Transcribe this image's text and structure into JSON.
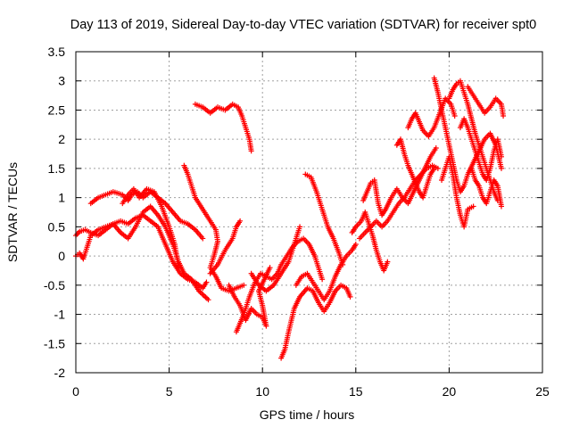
{
  "chart_data": {
    "type": "scatter",
    "title": "Day 113 of 2019, Sidereal Day-to-day VTEC variation (SDTVAR) for receiver spt0",
    "xlabel": "GPS time / hours",
    "ylabel": "SDTVAR / TECUs",
    "xlim": [
      0,
      25
    ],
    "ylim": [
      -2,
      3.5
    ],
    "xticks": [
      0,
      5,
      10,
      15,
      20,
      25
    ],
    "yticks": [
      -2,
      -1.5,
      -1,
      -0.5,
      0,
      0.5,
      1,
      1.5,
      2,
      2.5,
      3,
      3.5
    ],
    "grid": true,
    "marker": "+",
    "color": "#ff0000",
    "series": [
      {
        "points": [
          [
            0,
            0.35
          ],
          [
            0.2,
            0.42
          ],
          [
            0.5,
            0.45
          ],
          [
            0.8,
            0.4
          ],
          [
            1.2,
            0.35
          ],
          [
            1.6,
            0.45
          ],
          [
            2.0,
            0.55
          ],
          [
            2.4,
            0.6
          ],
          [
            2.8,
            0.55
          ],
          [
            3.2,
            0.65
          ],
          [
            3.6,
            0.7
          ],
          [
            4.0,
            0.6
          ],
          [
            4.4,
            0.5
          ],
          [
            4.8,
            0.2
          ],
          [
            5.2,
            -0.1
          ],
          [
            5.6,
            -0.3
          ],
          [
            6.0,
            -0.4
          ],
          [
            6.4,
            -0.45
          ],
          [
            6.8,
            -0.55
          ],
          [
            7.0,
            -0.45
          ]
        ]
      },
      {
        "points": [
          [
            0,
            0.0
          ],
          [
            0.2,
            0.05
          ],
          [
            0.4,
            -0.05
          ],
          [
            0.8,
            0.35
          ],
          [
            1.2,
            0.45
          ],
          [
            1.6,
            0.5
          ],
          [
            2.0,
            0.55
          ],
          [
            2.4,
            0.4
          ],
          [
            2.8,
            0.3
          ],
          [
            3.2,
            0.5
          ],
          [
            3.6,
            0.75
          ],
          [
            4.0,
            0.85
          ],
          [
            4.4,
            0.7
          ],
          [
            4.8,
            0.5
          ],
          [
            5.2,
            0.2
          ],
          [
            5.5,
            -0.1
          ],
          [
            5.8,
            -0.3
          ],
          [
            6.2,
            -0.4
          ],
          [
            6.6,
            -0.6
          ],
          [
            7.1,
            -0.75
          ]
        ]
      },
      {
        "points": [
          [
            0.8,
            0.9
          ],
          [
            1.2,
            1.0
          ],
          [
            1.6,
            1.05
          ],
          [
            2.0,
            1.1
          ],
          [
            2.5,
            1.05
          ],
          [
            2.8,
            0.95
          ],
          [
            3.0,
            1.05
          ],
          [
            3.3,
            1.1
          ],
          [
            3.6,
            1.0
          ],
          [
            4.0,
            1.1
          ],
          [
            4.4,
            1.0
          ],
          [
            4.8,
            0.9
          ],
          [
            5.2,
            0.75
          ],
          [
            5.6,
            0.6
          ],
          [
            6.0,
            0.55
          ],
          [
            6.4,
            0.45
          ],
          [
            6.8,
            0.3
          ]
        ]
      },
      {
        "points": [
          [
            2.5,
            0.9
          ],
          [
            2.8,
            1.05
          ],
          [
            3.1,
            1.15
          ],
          [
            3.4,
            1.0
          ],
          [
            3.8,
            1.15
          ],
          [
            4.2,
            1.1
          ],
          [
            4.6,
            0.85
          ],
          [
            5.0,
            0.5
          ],
          [
            5.3,
            0.2
          ],
          [
            5.5,
            -0.2
          ]
        ]
      },
      {
        "points": [
          [
            5.8,
            1.55
          ],
          [
            6.0,
            1.4
          ],
          [
            6.2,
            1.2
          ],
          [
            6.4,
            1.0
          ],
          [
            6.8,
            0.8
          ],
          [
            7.2,
            0.6
          ],
          [
            7.5,
            0.45
          ],
          [
            7.6,
            0.25
          ],
          [
            7.4,
            0.0
          ],
          [
            7.2,
            -0.2
          ],
          [
            7.5,
            -0.35
          ],
          [
            7.8,
            -0.55
          ],
          [
            8.2,
            -0.6
          ],
          [
            8.6,
            -0.55
          ],
          [
            9.0,
            -0.5
          ]
        ]
      },
      {
        "points": [
          [
            7.2,
            -0.3
          ],
          [
            7.6,
            -0.15
          ],
          [
            8.0,
            0.1
          ],
          [
            8.4,
            0.3
          ],
          [
            8.6,
            0.5
          ],
          [
            8.8,
            0.6
          ]
        ]
      },
      {
        "points": [
          [
            6.4,
            2.6
          ],
          [
            6.8,
            2.55
          ],
          [
            7.2,
            2.45
          ],
          [
            7.6,
            2.55
          ],
          [
            8.0,
            2.5
          ],
          [
            8.4,
            2.6
          ],
          [
            8.7,
            2.55
          ],
          [
            8.9,
            2.4
          ],
          [
            9.1,
            2.2
          ],
          [
            9.3,
            2.0
          ],
          [
            9.4,
            1.8
          ]
        ]
      },
      {
        "points": [
          [
            8.2,
            -0.5
          ],
          [
            8.5,
            -0.7
          ],
          [
            8.8,
            -0.85
          ],
          [
            9.1,
            -1.1
          ],
          [
            9.4,
            -0.9
          ],
          [
            9.7,
            -1.0
          ],
          [
            10.0,
            -1.05
          ],
          [
            10.2,
            -1.2
          ],
          [
            10.0,
            -0.85
          ],
          [
            9.8,
            -0.6
          ],
          [
            10.1,
            -0.4
          ],
          [
            10.4,
            -0.2
          ]
        ]
      },
      {
        "points": [
          [
            8.6,
            -1.3
          ],
          [
            9.0,
            -1.0
          ],
          [
            9.3,
            -0.7
          ],
          [
            9.6,
            -0.45
          ],
          [
            9.9,
            -0.3
          ],
          [
            10.2,
            -0.35
          ],
          [
            10.5,
            -0.4
          ],
          [
            10.8,
            -0.3
          ],
          [
            11.0,
            -0.15
          ],
          [
            11.3,
            0.0
          ],
          [
            11.6,
            0.15
          ],
          [
            11.9,
            0.25
          ],
          [
            12.2,
            0.3
          ],
          [
            12.5,
            0.2
          ],
          [
            12.8,
            0.0
          ],
          [
            13.0,
            -0.2
          ],
          [
            13.2,
            -0.4
          ]
        ]
      },
      {
        "points": [
          [
            9.4,
            -0.3
          ],
          [
            9.8,
            -0.5
          ],
          [
            10.2,
            -0.6
          ],
          [
            10.6,
            -0.5
          ],
          [
            11.0,
            -0.3
          ],
          [
            11.4,
            -0.1
          ],
          [
            11.7,
            0.2
          ],
          [
            12.0,
            0.5
          ]
        ]
      },
      {
        "points": [
          [
            11.0,
            -1.75
          ],
          [
            11.2,
            -1.6
          ],
          [
            11.4,
            -1.3
          ],
          [
            11.7,
            -0.9
          ],
          [
            12.0,
            -0.7
          ],
          [
            12.4,
            -0.55
          ],
          [
            12.7,
            -0.6
          ],
          [
            13.0,
            -0.8
          ],
          [
            13.3,
            -0.95
          ],
          [
            13.6,
            -0.8
          ],
          [
            13.9,
            -0.6
          ],
          [
            14.2,
            -0.5
          ],
          [
            14.5,
            -0.55
          ],
          [
            14.7,
            -0.7
          ]
        ]
      },
      {
        "points": [
          [
            11.8,
            -0.5
          ],
          [
            12.1,
            -0.35
          ],
          [
            12.4,
            -0.3
          ],
          [
            12.7,
            -0.45
          ],
          [
            13.0,
            -0.6
          ],
          [
            13.3,
            -0.75
          ],
          [
            13.6,
            -0.6
          ],
          [
            13.9,
            -0.35
          ],
          [
            14.2,
            -0.15
          ],
          [
            14.5,
            0.0
          ],
          [
            14.8,
            0.1
          ],
          [
            15.0,
            0.2
          ]
        ]
      },
      {
        "points": [
          [
            12.3,
            1.4
          ],
          [
            12.6,
            1.35
          ],
          [
            12.9,
            1.1
          ],
          [
            13.2,
            0.8
          ],
          [
            13.5,
            0.5
          ],
          [
            13.8,
            0.3
          ],
          [
            14.1,
            0.05
          ],
          [
            14.3,
            -0.15
          ]
        ]
      },
      {
        "points": [
          [
            14.8,
            0.4
          ],
          [
            15.0,
            0.5
          ],
          [
            15.3,
            0.6
          ],
          [
            15.5,
            0.75
          ],
          [
            15.7,
            0.55
          ],
          [
            15.9,
            0.35
          ],
          [
            16.1,
            0.1
          ],
          [
            16.3,
            -0.1
          ],
          [
            16.5,
            -0.25
          ],
          [
            16.7,
            -0.1
          ]
        ]
      },
      {
        "points": [
          [
            15.2,
            0.3
          ],
          [
            15.5,
            0.4
          ],
          [
            15.8,
            0.5
          ],
          [
            16.1,
            0.6
          ],
          [
            16.4,
            0.5
          ],
          [
            16.7,
            0.6
          ],
          [
            17.0,
            0.75
          ],
          [
            17.3,
            0.9
          ],
          [
            17.6,
            1.0
          ],
          [
            17.9,
            1.15
          ],
          [
            18.2,
            1.3
          ],
          [
            18.5,
            1.4
          ],
          [
            18.8,
            1.5
          ],
          [
            19.1,
            1.55
          ],
          [
            19.4,
            1.5
          ]
        ]
      },
      {
        "points": [
          [
            15.4,
            0.95
          ],
          [
            15.6,
            1.1
          ],
          [
            15.8,
            1.25
          ],
          [
            16.0,
            1.3
          ],
          [
            16.2,
            0.9
          ],
          [
            16.4,
            0.7
          ],
          [
            16.6,
            0.8
          ],
          [
            16.9,
            1.0
          ],
          [
            17.2,
            1.15
          ],
          [
            17.5,
            1.0
          ],
          [
            17.8,
            0.9
          ],
          [
            18.1,
            1.1
          ],
          [
            18.4,
            1.3
          ],
          [
            18.7,
            1.5
          ],
          [
            19.0,
            1.7
          ],
          [
            19.3,
            1.85
          ]
        ]
      },
      {
        "points": [
          [
            17.2,
            1.9
          ],
          [
            17.4,
            2.0
          ],
          [
            17.6,
            1.75
          ],
          [
            17.8,
            1.55
          ],
          [
            18.0,
            1.4
          ],
          [
            18.2,
            1.25
          ],
          [
            18.4,
            1.1
          ],
          [
            18.6,
            1.0
          ],
          [
            18.8,
            1.2
          ],
          [
            19.0,
            1.4
          ],
          [
            19.2,
            1.5
          ]
        ]
      },
      {
        "points": [
          [
            17.8,
            2.2
          ],
          [
            18.0,
            2.35
          ],
          [
            18.2,
            2.45
          ],
          [
            18.4,
            2.3
          ],
          [
            18.6,
            2.15
          ],
          [
            18.9,
            2.05
          ],
          [
            19.2,
            2.2
          ],
          [
            19.5,
            2.45
          ],
          [
            19.8,
            2.7
          ],
          [
            20.1,
            2.6
          ],
          [
            20.3,
            2.4
          ]
        ]
      },
      {
        "points": [
          [
            19.2,
            3.05
          ],
          [
            19.4,
            2.8
          ],
          [
            19.6,
            2.5
          ],
          [
            19.8,
            2.2
          ],
          [
            20.0,
            1.9
          ],
          [
            20.2,
            1.6
          ],
          [
            20.4,
            1.3
          ],
          [
            20.6,
            1.1
          ],
          [
            20.8,
            1.2
          ],
          [
            21.0,
            1.4
          ],
          [
            21.3,
            1.6
          ],
          [
            21.6,
            1.8
          ],
          [
            21.9,
            2.0
          ],
          [
            22.2,
            2.1
          ],
          [
            22.5,
            1.9
          ],
          [
            22.8,
            1.5
          ]
        ]
      },
      {
        "points": [
          [
            19.6,
            1.3
          ],
          [
            19.8,
            1.5
          ],
          [
            20.0,
            1.7
          ],
          [
            20.2,
            1.4
          ],
          [
            20.4,
            1.0
          ],
          [
            20.6,
            0.7
          ],
          [
            20.8,
            0.5
          ],
          [
            21.0,
            0.8
          ],
          [
            21.3,
            0.85
          ]
        ]
      },
      {
        "points": [
          [
            20.0,
            2.7
          ],
          [
            20.2,
            2.85
          ],
          [
            20.4,
            2.95
          ],
          [
            20.6,
            3.0
          ],
          [
            20.8,
            2.8
          ],
          [
            21.0,
            2.6
          ],
          [
            21.2,
            2.35
          ],
          [
            21.4,
            2.1
          ],
          [
            21.6,
            1.9
          ],
          [
            21.8,
            1.7
          ],
          [
            22.0,
            1.5
          ],
          [
            22.2,
            1.3
          ],
          [
            22.4,
            1.1
          ],
          [
            22.6,
            0.95
          ]
        ]
      },
      {
        "points": [
          [
            20.6,
            2.2
          ],
          [
            20.8,
            2.35
          ],
          [
            21.0,
            2.2
          ],
          [
            21.2,
            2.0
          ],
          [
            21.4,
            1.8
          ],
          [
            21.6,
            1.6
          ],
          [
            21.8,
            1.4
          ],
          [
            22.0,
            1.3
          ],
          [
            22.2,
            1.5
          ],
          [
            22.4,
            1.8
          ],
          [
            22.6,
            2.0
          ],
          [
            22.8,
            1.7
          ]
        ]
      },
      {
        "points": [
          [
            21.0,
            2.9
          ],
          [
            21.3,
            2.75
          ],
          [
            21.6,
            2.6
          ],
          [
            21.9,
            2.45
          ],
          [
            22.2,
            2.55
          ],
          [
            22.5,
            2.7
          ],
          [
            22.8,
            2.6
          ],
          [
            22.9,
            2.4
          ]
        ]
      },
      {
        "points": [
          [
            21.2,
            1.5
          ],
          [
            21.4,
            1.3
          ],
          [
            21.6,
            1.2
          ],
          [
            21.8,
            1.0
          ],
          [
            22.0,
            0.9
          ],
          [
            22.2,
            1.1
          ],
          [
            22.4,
            1.3
          ],
          [
            22.6,
            1.2
          ],
          [
            22.8,
            0.85
          ]
        ]
      }
    ]
  }
}
